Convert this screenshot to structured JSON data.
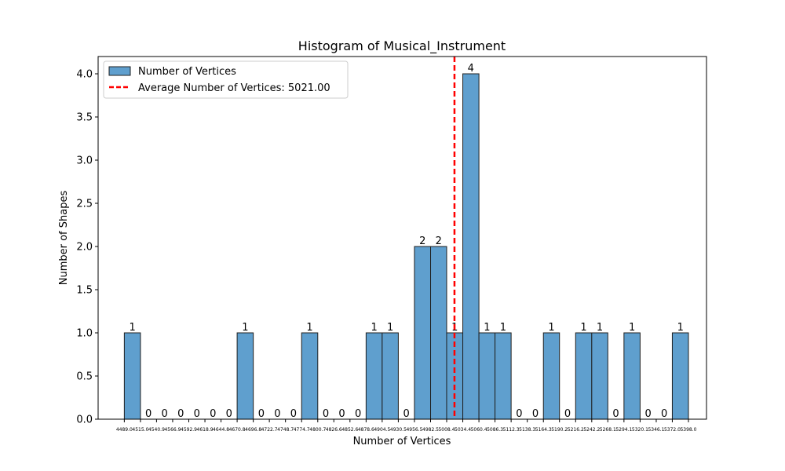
{
  "chart_data": {
    "type": "bar",
    "title": "Histogram of Musical_Instrument",
    "xlabel": "Number of Vertices",
    "ylabel": "Number of Shapes",
    "ylim": [
      0,
      4.2
    ],
    "xlim": [
      4446.8,
      5427.1
    ],
    "yticks": [
      "0.0",
      "0.5",
      "1.0",
      "1.5",
      "2.0",
      "2.5",
      "3.0",
      "3.5",
      "4.0"
    ],
    "bin_edges": [
      4489.0,
      4515.0,
      4540.9,
      4566.9,
      4592.9,
      4618.9,
      4644.8,
      4670.8,
      4696.8,
      4722.7,
      4748.7,
      4774.7,
      4800.7,
      4826.6,
      4852.6,
      4878.6,
      4904.5,
      4930.5,
      4956.5,
      4982.5,
      5008.4,
      5034.4,
      5060.4,
      5086.3,
      5112.3,
      5138.3,
      5164.3,
      5190.2,
      5216.2,
      5242.2,
      5268.1,
      5294.1,
      5320.1,
      5346.1,
      5372.0,
      5398.0
    ],
    "xtick_labels": [
      "4489.0",
      "4515.0",
      "4540.9",
      "4566.9",
      "4592.9",
      "4618.9",
      "4644.8",
      "4670.8",
      "4696.8",
      "4722.7",
      "4748.7",
      "4774.7",
      "4800.7",
      "4826.6",
      "4852.6",
      "4878.6",
      "4904.5",
      "4930.5",
      "4956.5",
      "4982.5",
      "5008.4",
      "5034.4",
      "5060.4",
      "5086.3",
      "5112.3",
      "5138.3",
      "5164.3",
      "5190.2",
      "5216.2",
      "5242.2",
      "5268.1",
      "5294.1",
      "5320.1",
      "5346.1",
      "5372.0",
      "5398.0"
    ],
    "counts": [
      1,
      0,
      0,
      0,
      0,
      0,
      0,
      1,
      0,
      0,
      0,
      1,
      0,
      0,
      0,
      1,
      1,
      0,
      2,
      2,
      1,
      4,
      1,
      1,
      0,
      0,
      1,
      0,
      1,
      1,
      0,
      1,
      0,
      0,
      1
    ],
    "bar_labels": [
      "1",
      "0",
      "0",
      "0",
      "0",
      "0",
      "0",
      "1",
      "0",
      "0",
      "0",
      "1",
      "0",
      "0",
      "0",
      "1",
      "1",
      "0",
      "2",
      "2",
      "1",
      "4",
      "1",
      "1",
      "0",
      "0",
      "1",
      "0",
      "1",
      "1",
      "0",
      "1",
      "0",
      "0",
      "1"
    ],
    "average": 5021.0,
    "legend": {
      "position": "upper-left",
      "bars_label": "Number of Vertices",
      "average_label": "Average Number of Vertices: 5021.00"
    },
    "colors": {
      "bar_fill": "#5f9fce",
      "bar_edge": "#1f1f1f",
      "average_line": "#ff0000"
    },
    "grid": false
  }
}
